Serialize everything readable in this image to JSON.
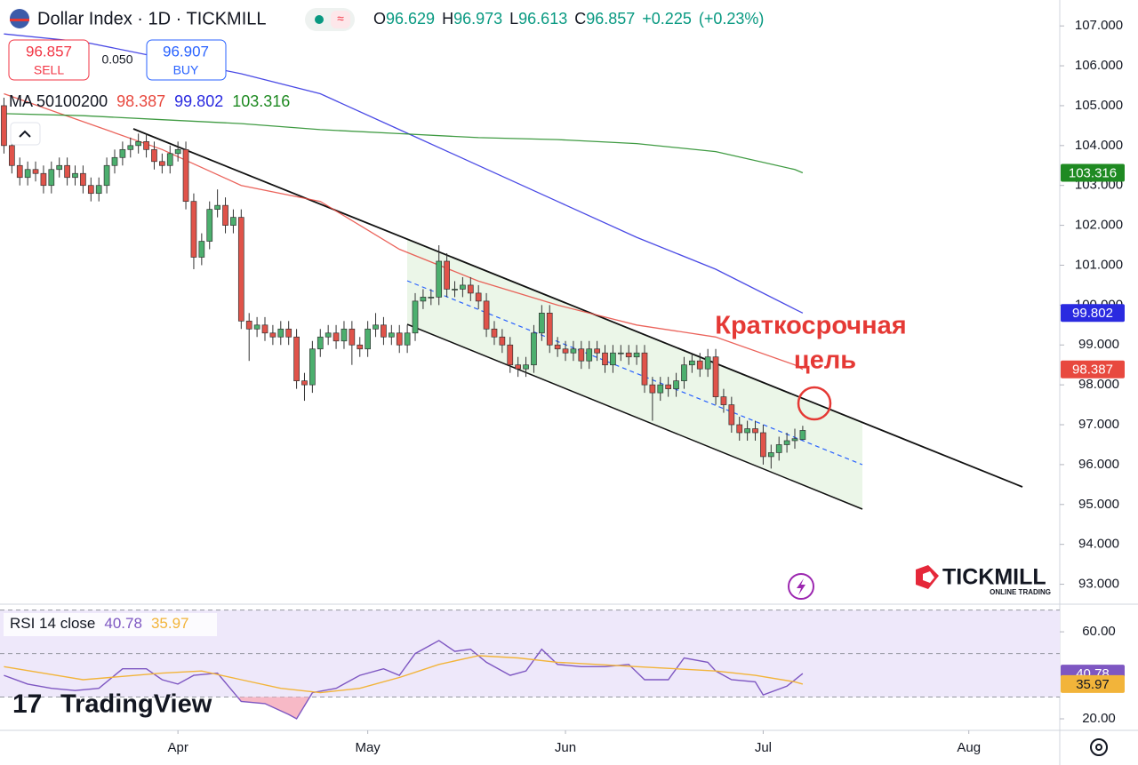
{
  "header": {
    "title": "Dollar Index · 1D · TICKMILL",
    "o_label": "O",
    "h_label": "H",
    "l_label": "L",
    "c_label": "C",
    "change": "+0.225",
    "change_pct": "(+0.23%)"
  },
  "trade": {
    "sell_price": "96.857",
    "sell_label": "SELL",
    "spread": "0.050",
    "buy_price": "96.907",
    "buy_label": "BUY"
  },
  "annotation": [
    "Краткосрочная",
    "цель"
  ],
  "branding": {
    "broker": "TICKMILL",
    "broker_tagline": "ONLINE TRADING",
    "platform": "TradingView"
  },
  "chart_data": [
    {
      "type": "candlestick",
      "ma_label": "MA 50100200",
      "xlim": [
        -0.5,
        133.5
      ],
      "ylim": [
        92.5,
        107.65
      ],
      "yticks": [
        {
          "value": 93,
          "label": "93.000"
        },
        {
          "value": 94,
          "label": "94.000"
        },
        {
          "value": 95,
          "label": "95.000"
        },
        {
          "value": 96,
          "label": "96.000"
        },
        {
          "value": 97,
          "label": "97.000"
        },
        {
          "value": 98,
          "label": "98.000"
        },
        {
          "value": 99,
          "label": "99.000"
        },
        {
          "value": 100,
          "label": "100.000"
        },
        {
          "value": 101,
          "label": "101.000"
        },
        {
          "value": 102,
          "label": "102.000"
        },
        {
          "value": 103,
          "label": "103.000"
        },
        {
          "value": 104,
          "label": "104.000"
        },
        {
          "value": 105,
          "label": "105.000"
        },
        {
          "value": 106,
          "label": "106.000"
        },
        {
          "value": 107,
          "label": "107.000"
        }
      ],
      "series": [
        {
          "up_color": "#4caf6e",
          "down_color": "#e0534a",
          "open": [
            105.0,
            104.0,
            103.5,
            103.2,
            103.4,
            103.3,
            103.0,
            103.4,
            103.5,
            103.2,
            103.3,
            103.0,
            102.8,
            103.0,
            103.5,
            103.7,
            103.9,
            104.0,
            104.1,
            103.9,
            103.6,
            103.5,
            103.8,
            103.9,
            102.6,
            101.2,
            101.6,
            102.4,
            102.5,
            102.0,
            102.2,
            99.6,
            99.4,
            99.5,
            99.3,
            99.2,
            99.4,
            99.2,
            98.1,
            98.0,
            98.9,
            99.2,
            99.3,
            99.1,
            99.4,
            99.0,
            98.9,
            99.4,
            99.5,
            99.2,
            99.3,
            99.0,
            99.3,
            100.1,
            100.2,
            100.2,
            101.1,
            100.4,
            100.4,
            100.5,
            100.3,
            100.1,
            99.4,
            99.2,
            99.0,
            98.5,
            98.4,
            98.5,
            99.3,
            99.8,
            99.0,
            98.9,
            98.8,
            98.9,
            98.6,
            98.9,
            98.8,
            98.5,
            98.8,
            98.8,
            98.7,
            98.8,
            98.0,
            97.8,
            98.0,
            97.9,
            98.1,
            98.5,
            98.6,
            98.4,
            98.7,
            97.7,
            97.5,
            97.0,
            96.8,
            96.9,
            96.8,
            96.2,
            96.3,
            96.5,
            96.6,
            96.629
          ],
          "high": [
            105.2,
            104.2,
            103.7,
            103.6,
            103.6,
            103.5,
            103.6,
            103.7,
            103.7,
            103.5,
            103.5,
            103.2,
            103.2,
            103.7,
            103.9,
            104.1,
            104.2,
            104.3,
            104.3,
            104.1,
            103.8,
            104.0,
            104.1,
            104.1,
            102.8,
            101.8,
            102.6,
            102.9,
            102.7,
            102.4,
            102.4,
            99.8,
            99.7,
            99.7,
            99.5,
            99.6,
            99.6,
            99.4,
            98.3,
            99.1,
            99.4,
            99.5,
            99.5,
            99.6,
            99.6,
            99.2,
            99.6,
            99.8,
            99.7,
            99.5,
            99.5,
            99.5,
            100.3,
            100.4,
            100.4,
            101.5,
            101.3,
            100.6,
            100.7,
            100.7,
            100.5,
            100.3,
            99.6,
            99.4,
            99.2,
            98.7,
            98.7,
            99.5,
            100.0,
            100.0,
            99.2,
            99.1,
            99.1,
            99.1,
            99.1,
            99.1,
            99.0,
            99.0,
            99.0,
            99.0,
            99.0,
            99.0,
            98.2,
            98.2,
            98.2,
            98.3,
            98.7,
            98.8,
            98.8,
            98.9,
            98.9,
            97.9,
            97.7,
            97.2,
            97.1,
            97.1,
            97.0,
            96.5,
            96.7,
            96.8,
            96.9,
            96.973
          ],
          "low": [
            103.8,
            103.3,
            103.0,
            103.0,
            103.1,
            102.8,
            102.8,
            103.2,
            103.0,
            103.0,
            102.8,
            102.6,
            102.6,
            102.8,
            103.3,
            103.5,
            103.7,
            103.8,
            103.7,
            103.4,
            103.3,
            103.3,
            103.6,
            102.4,
            100.9,
            101.0,
            101.4,
            102.2,
            101.8,
            101.8,
            99.4,
            98.6,
            99.2,
            99.1,
            99.0,
            99.0,
            99.0,
            97.9,
            97.6,
            97.8,
            98.7,
            99.0,
            98.9,
            98.9,
            98.5,
            98.7,
            98.7,
            99.2,
            99.0,
            99.0,
            98.8,
            98.8,
            99.1,
            99.9,
            100.0,
            100.0,
            100.2,
            100.2,
            100.2,
            100.1,
            99.9,
            99.2,
            99.0,
            98.8,
            98.3,
            98.2,
            98.2,
            98.3,
            99.1,
            98.8,
            98.7,
            98.6,
            98.6,
            98.4,
            98.4,
            98.6,
            98.3,
            98.3,
            98.6,
            98.5,
            98.5,
            97.8,
            97.1,
            97.6,
            97.7,
            97.7,
            97.9,
            98.3,
            98.2,
            98.2,
            97.5,
            97.3,
            96.8,
            96.6,
            96.6,
            96.6,
            96.0,
            95.9,
            96.1,
            96.3,
            96.4,
            96.613
          ],
          "close": [
            104.0,
            103.5,
            103.2,
            103.4,
            103.3,
            103.0,
            103.4,
            103.5,
            103.2,
            103.3,
            103.0,
            102.8,
            103.0,
            103.5,
            103.7,
            103.9,
            104.0,
            104.1,
            103.9,
            103.6,
            103.5,
            103.8,
            103.9,
            102.6,
            101.2,
            101.6,
            102.4,
            102.5,
            102.0,
            102.2,
            99.6,
            99.4,
            99.5,
            99.3,
            99.2,
            99.4,
            99.2,
            98.1,
            98.0,
            98.9,
            99.2,
            99.3,
            99.1,
            99.4,
            99.0,
            98.9,
            99.4,
            99.5,
            99.2,
            99.3,
            99.0,
            99.3,
            100.1,
            100.2,
            100.2,
            101.1,
            100.4,
            100.4,
            100.5,
            100.3,
            100.1,
            99.4,
            99.2,
            99.0,
            98.5,
            98.4,
            98.5,
            99.3,
            99.8,
            99.0,
            98.9,
            98.8,
            98.9,
            98.6,
            98.9,
            98.8,
            98.5,
            98.8,
            98.8,
            98.7,
            98.8,
            98.0,
            97.8,
            98.0,
            97.9,
            98.1,
            98.5,
            98.6,
            98.4,
            98.7,
            97.7,
            97.5,
            97.0,
            96.8,
            96.9,
            96.8,
            96.2,
            96.3,
            96.5,
            96.6,
            96.65,
            96.857
          ]
        }
      ],
      "lines": [
        {
          "color": "#e8493f",
          "x": [
            0,
            10,
            20,
            30,
            40,
            50,
            60,
            70,
            80,
            90,
            100,
            101
          ],
          "values": [
            105.3,
            104.6,
            103.9,
            103.0,
            102.6,
            101.4,
            100.6,
            100.0,
            99.5,
            99.2,
            98.5,
            98.387
          ]
        },
        {
          "color": "#2a2ae0",
          "x": [
            0,
            10,
            20,
            30,
            40,
            50,
            60,
            70,
            80,
            90,
            100,
            101
          ],
          "values": [
            106.8,
            106.6,
            106.2,
            105.8,
            105.3,
            104.4,
            103.5,
            102.6,
            101.7,
            100.9,
            99.9,
            99.802
          ]
        },
        {
          "color": "#1f8a22",
          "x": [
            0,
            10,
            20,
            30,
            40,
            50,
            60,
            70,
            80,
            90,
            100,
            101
          ],
          "values": [
            104.8,
            104.75,
            104.65,
            104.55,
            104.4,
            104.3,
            104.2,
            104.15,
            104.05,
            103.85,
            103.4,
            103.316
          ]
        }
      ]
    },
    {
      "type": "line",
      "title": "RSI 14 close",
      "xlim": [
        -0.5,
        133.5
      ],
      "ylim": [
        14.7,
        72.7
      ],
      "xticks": [
        {
          "value": 22,
          "label": "Apr"
        },
        {
          "value": 46,
          "label": "May"
        },
        {
          "value": 71,
          "label": "Jun"
        },
        {
          "value": 96,
          "label": "Jul"
        },
        {
          "value": 122,
          "label": "Aug"
        }
      ],
      "yticks": [
        {
          "value": 20,
          "label": "20.00"
        },
        {
          "value": 60,
          "label": "60.00"
        }
      ],
      "levels": [
        70,
        50,
        30
      ],
      "band_color": "#eee8fa",
      "below_color": "#f7b9c6",
      "series": [
        {
          "color": "#7e57c2",
          "x": [
            0,
            3,
            6,
            9,
            12,
            15,
            18,
            20,
            22,
            24,
            27,
            30,
            33,
            36,
            37,
            39,
            42,
            45,
            48,
            50,
            52,
            55,
            57,
            59,
            61,
            64,
            66,
            68,
            70,
            73,
            76,
            79,
            81,
            84,
            86,
            89,
            90,
            92,
            95,
            96,
            99,
            101
          ],
          "values": [
            40,
            36,
            34,
            33,
            34,
            43,
            43,
            38,
            36,
            40,
            41,
            28,
            27,
            22,
            20,
            32,
            34,
            40,
            43,
            40,
            50,
            56,
            51,
            52,
            46,
            40,
            42,
            52,
            45,
            44,
            44,
            45,
            38,
            38,
            48,
            46,
            42,
            38,
            37,
            31,
            35,
            40.78
          ]
        },
        {
          "color": "#f2b43a",
          "x": [
            0,
            10,
            20,
            25,
            30,
            35,
            40,
            45,
            50,
            55,
            60,
            65,
            70,
            75,
            80,
            85,
            90,
            95,
            100,
            101
          ],
          "values": [
            44,
            38,
            41,
            42,
            38,
            34,
            32,
            34,
            39,
            45,
            49,
            48,
            46,
            45,
            44,
            43,
            42,
            40,
            37,
            35.97
          ]
        }
      ]
    }
  ]
}
